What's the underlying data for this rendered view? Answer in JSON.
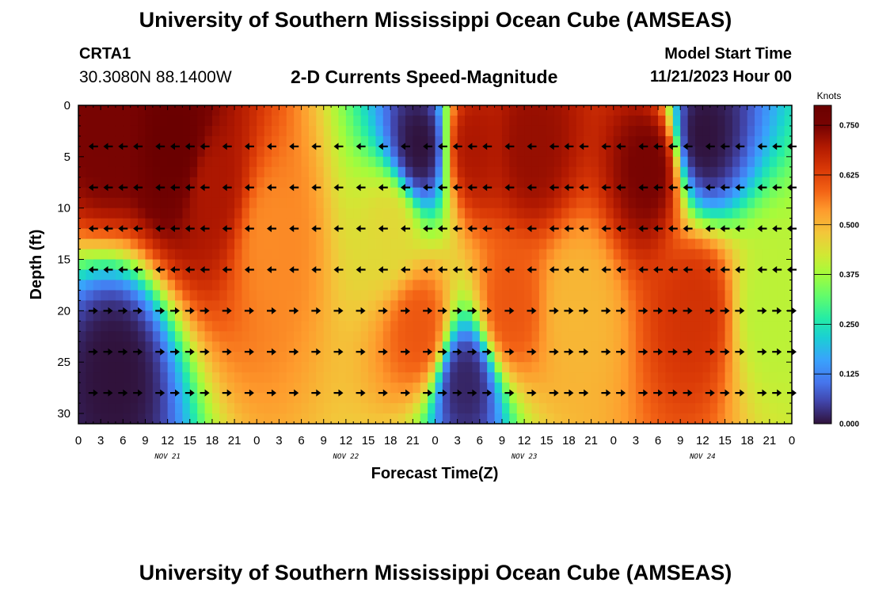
{
  "header": {
    "title": "University of Southern Mississippi Ocean Cube (AMSEAS)",
    "station_name": "CRTA1",
    "coordinates": "30.3080N  88.1400W",
    "plot_title": "2-D Currents Speed-Magnitude",
    "model_start_label": "Model Start Time",
    "model_start_value": "11/21/2023 Hour 00"
  },
  "footer": {
    "title": "University of Southern Mississippi Ocean Cube (AMSEAS)"
  },
  "chart_data": {
    "type": "heatmap",
    "title": "2-D Currents Speed-Magnitude",
    "xlabel": "Forecast Time(Z)",
    "ylabel": "Depth (ft)",
    "x_hours_range": [
      0,
      96
    ],
    "ylim": [
      0,
      31
    ],
    "x_ticks": [
      "0",
      "3",
      "6",
      "9",
      "12",
      "15",
      "18",
      "21",
      "0",
      "3",
      "6",
      "9",
      "12",
      "15",
      "18",
      "21",
      "0",
      "3",
      "6",
      "9",
      "12",
      "15",
      "18",
      "21",
      "0",
      "3",
      "6",
      "9",
      "12",
      "15",
      "18",
      "21",
      "0"
    ],
    "x_tick_hours": [
      0,
      3,
      6,
      9,
      12,
      15,
      18,
      21,
      24,
      27,
      30,
      33,
      36,
      39,
      42,
      45,
      48,
      51,
      54,
      57,
      60,
      63,
      66,
      69,
      72,
      75,
      78,
      81,
      84,
      87,
      90,
      93,
      96
    ],
    "date_labels": [
      {
        "label": "NOV 21",
        "hour": 12
      },
      {
        "label": "NOV 22",
        "hour": 36
      },
      {
        "label": "NOV 23",
        "hour": 60
      },
      {
        "label": "NOV 24",
        "hour": 84
      }
    ],
    "y_ticks": [
      "0",
      "5",
      "10",
      "15",
      "20",
      "25",
      "30"
    ],
    "y_tick_values": [
      0,
      5,
      10,
      15,
      20,
      25,
      30
    ],
    "colorbar": {
      "title": "Knots",
      "ticks": [
        "0.000",
        "0.125",
        "0.250",
        "0.375",
        "0.500",
        "0.625",
        "0.750"
      ],
      "tick_values": [
        0,
        0.125,
        0.25,
        0.375,
        0.5,
        0.625,
        0.75
      ],
      "range": [
        0,
        0.8
      ]
    },
    "arrow_depths_ft": [
      4,
      8,
      12,
      16,
      20,
      24,
      28
    ],
    "arrow_hours": [
      2,
      4,
      6,
      8,
      11,
      13,
      15,
      17,
      20,
      23,
      26,
      29,
      32,
      35,
      38,
      41,
      44,
      47,
      49,
      51,
      53,
      55,
      58,
      61,
      64,
      66,
      68,
      71,
      73,
      76,
      78,
      80,
      82,
      85,
      87,
      89,
      92,
      94,
      96
    ],
    "speed_features_knots": [
      {
        "hour": 4,
        "depth": 2,
        "speed": 0.75
      },
      {
        "hour": 13,
        "depth": 4,
        "speed": 0.8
      },
      {
        "hour": 18,
        "depth": 8,
        "speed": 0.7
      },
      {
        "hour": 26,
        "depth": 13,
        "speed": 0.55
      },
      {
        "hour": 42,
        "depth": 12,
        "speed": 0.45
      },
      {
        "hour": 46,
        "depth": 4,
        "speed": 0.0
      },
      {
        "hour": 46,
        "depth": 22,
        "speed": 0.6
      },
      {
        "hour": 53,
        "depth": 4,
        "speed": 0.7
      },
      {
        "hour": 61,
        "depth": 4,
        "speed": 0.72
      },
      {
        "hour": 58,
        "depth": 20,
        "speed": 0.6
      },
      {
        "hour": 67,
        "depth": 20,
        "speed": 0.5
      },
      {
        "hour": 77,
        "depth": 6,
        "speed": 0.75
      },
      {
        "hour": 83,
        "depth": 20,
        "speed": 0.65
      },
      {
        "hour": 84,
        "depth": 3,
        "speed": 0.0
      },
      {
        "hour": 93,
        "depth": 20,
        "speed": 0.4
      },
      {
        "hour": 5,
        "depth": 26,
        "speed": 0.0
      },
      {
        "hour": 52,
        "depth": 27,
        "speed": 0.02
      }
    ]
  }
}
